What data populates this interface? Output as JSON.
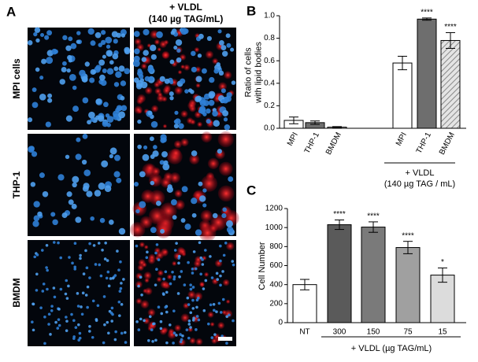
{
  "panel_a": {
    "label": "A",
    "column_header": [
      "+ VLDL",
      "(140 µg TAG/mL)"
    ],
    "row_labels": [
      "MPI cells",
      "THP-1",
      "BMDM"
    ]
  },
  "chart_data": [
    {
      "type": "bar",
      "panel_label": "B",
      "ylabel": [
        "Ratio of cells",
        "with lipid bodies"
      ],
      "categories": [
        "MPI",
        "THP-1",
        "BMDM",
        "MPI",
        "THP-1",
        "BMDM"
      ],
      "values": [
        0.07,
        0.05,
        0.01,
        0.58,
        0.97,
        0.78
      ],
      "errors": [
        0.03,
        0.015,
        0.005,
        0.06,
        0.01,
        0.07
      ],
      "annotations": [
        null,
        null,
        null,
        null,
        "****",
        "****"
      ],
      "colors": [
        "#ffffff",
        "#6e6e6e",
        "#d9d9d9",
        "#ffffff",
        "#6e6e6e",
        "#e4e4e4"
      ],
      "hatch_indices": [
        5
      ],
      "group_label": [
        "+ VLDL",
        "(140 µg TAG / mL)"
      ],
      "ylim": [
        0,
        1
      ],
      "yticks": [
        {
          "value": 0,
          "label": "0.0"
        },
        0.2,
        0.4,
        0.6,
        0.8,
        {
          "value": 1,
          "label": "1.0"
        }
      ]
    },
    {
      "type": "bar",
      "panel_label": "C",
      "ylabel": [
        "Cell Number"
      ],
      "categories": [
        "NT",
        "300",
        "150",
        "75",
        "15"
      ],
      "values": [
        400,
        1030,
        1005,
        790,
        500
      ],
      "errors": [
        55,
        50,
        55,
        65,
        75
      ],
      "annotations": [
        null,
        "****",
        "****",
        "****",
        "*"
      ],
      "colors": [
        "#ffffff",
        "#5a5a5a",
        "#7a7a7a",
        "#a0a0a0",
        "#dcdcdc"
      ],
      "hatch_indices": [],
      "group_label": [
        "+ VLDL  (µg  TAG/mL)"
      ],
      "ylim": [
        0,
        1200
      ],
      "yticks": [
        0,
        200,
        400,
        600,
        800,
        1000,
        1200
      ]
    }
  ]
}
